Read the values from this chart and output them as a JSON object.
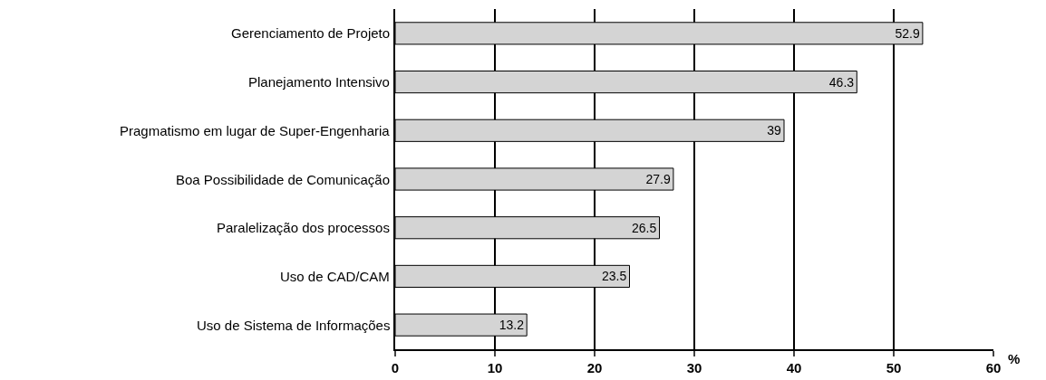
{
  "chart_data": {
    "type": "bar",
    "orientation": "horizontal",
    "categories": [
      "Gerenciamento de Projeto",
      "Planejamento Intensivo",
      "Pragmatismo em lugar de Super-Engenharia",
      "Boa Possibilidade de Comunicação",
      "Paralelização dos processos",
      "Uso de CAD/CAM",
      "Uso de Sistema de Informações"
    ],
    "values": [
      52.9,
      46.3,
      39,
      27.9,
      26.5,
      23.5,
      13.2
    ],
    "color": "#d4d4d4",
    "xlim": [
      0,
      60
    ],
    "xticks": [
      0,
      10,
      20,
      30,
      40,
      50,
      60
    ],
    "xlabel": "%",
    "grid": "x",
    "data_labels": true
  }
}
